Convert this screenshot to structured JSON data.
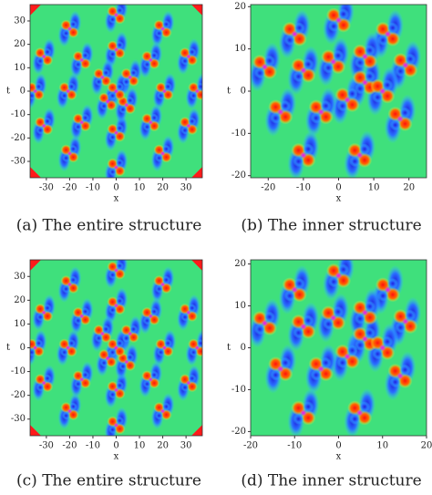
{
  "chart_data": [
    {
      "type": "heatmap",
      "title": "(a) The entire structure",
      "xlabel": "x",
      "ylabel": "t",
      "xlim": [
        -37,
        37
      ],
      "ylim": [
        -37,
        37
      ],
      "xticks": [
        -30,
        -20,
        -10,
        0,
        10,
        20,
        30
      ],
      "yticks": [
        -30,
        -20,
        -10,
        0,
        10,
        20,
        30
      ]
    },
    {
      "type": "heatmap",
      "title": "(b) The inner structure",
      "xlabel": "x",
      "ylabel": "t",
      "xlim": [
        -25,
        25
      ],
      "ylim": [
        -20.5,
        20.5
      ],
      "xticks": [
        -20,
        -10,
        0,
        10,
        20
      ],
      "yticks": [
        -20,
        -10,
        0,
        10,
        20
      ]
    },
    {
      "type": "heatmap",
      "title": "(c) The entire structure",
      "xlabel": "x",
      "ylabel": "t",
      "xlim": [
        -37,
        37
      ],
      "ylim": [
        -37,
        37
      ],
      "xticks": [
        -30,
        -20,
        -10,
        0,
        10,
        20,
        30
      ],
      "yticks": [
        -30,
        -20,
        -10,
        0,
        10,
        20,
        30
      ]
    },
    {
      "type": "heatmap",
      "title": "(d) The inner structure",
      "xlabel": "x",
      "ylabel": "t",
      "xlim": [
        -20,
        20
      ],
      "ylim": [
        -21,
        21
      ],
      "xticks": [
        -20,
        -10,
        0,
        10,
        20
      ],
      "yticks": [
        -20,
        -10,
        0,
        10,
        20
      ]
    }
  ]
}
